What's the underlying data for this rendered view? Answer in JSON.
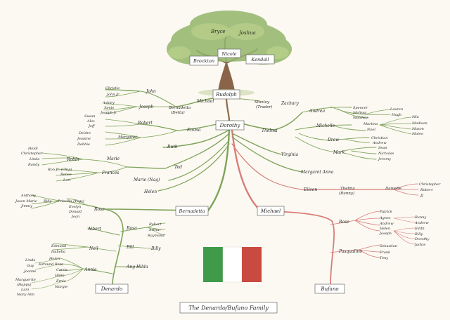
{
  "title": "The Denardo/Bufano Family",
  "colors": {
    "flag_green": "#3f9a4a",
    "flag_white": "#ffffff",
    "flag_red": "#c94a40",
    "branch": "#8aa85a",
    "red_branch": "#d97d7a"
  },
  "tree": {
    "top": [
      "Bryce",
      "Joshua",
      "Nicole",
      "Brockton",
      "Kendall"
    ],
    "root": "Rudolph"
  },
  "boxes": {
    "rudolph": "Rudolph",
    "dorothy": "Dorothy",
    "bernadetta": "Bernadetta",
    "michael": "Michael",
    "denardo": "Denardo",
    "bufano": "Bufano"
  },
  "nw": {
    "michael": "Michael",
    "bernadetta": "Bernadetta",
    "detta": "(Detta)",
    "stanley": "Stanley",
    "trader": "(Trader)",
    "zachary": "Zachary",
    "john": "John",
    "christie": "Christie",
    "john_jr": "John Jr",
    "joseph": "Joseph",
    "ashley": "Ashley",
    "jamie": "Jamie",
    "joseph_jr": "Joseph Jr",
    "robert": "Robert",
    "susan": "Susan",
    "alex": "Alex",
    "jeff": "Jeff",
    "emma": "Emma",
    "margaret": "Margaret",
    "deidre": "Deidre",
    "jeanine": "Jeanine",
    "debbie": "Debbie"
  },
  "west": {
    "ruth": "Ruth",
    "ted": "Ted",
    "marie": "Marie",
    "robin": "Robin",
    "heidi": "Heidi",
    "christopher": "Christopher",
    "linda": "Linda",
    "randy": "Randy",
    "frances": "Frances",
    "ron_jr": "Ron Jr. (Chip)",
    "renee": "Renee",
    "lori": "Lori",
    "marie_nag": "Marie (Nag)",
    "helen": "Helen"
  },
  "east": {
    "thelma": "Thelma",
    "andrea": "Andrea",
    "spencer": "Spencer",
    "melissa": "Melissa",
    "matthew": "Matthew",
    "lauren": "Lauren",
    "hugh": "Hugh",
    "michelle": "Michelle",
    "martina": "Martina",
    "noel": "Noel",
    "mia": "Mia",
    "madison": "Madison",
    "mason": "Mason",
    "mateo": "Mateo",
    "drew": "Drew",
    "christian": "Christian",
    "andrew": "Andrew",
    "mark": "Mark",
    "sean": "Sean",
    "nicholas": "Nicholas",
    "jeremy": "Jeremy",
    "virginia": "Virginia",
    "margaret_anna": "Margaret Anna",
    "eileen": "Eileen",
    "thelma_bunny": "Thelma",
    "bunny": "(Bunny)",
    "danielle": "Danielle",
    "christopher": "Christopher",
    "robert": "Robert",
    "jj": "JJ"
  },
  "sw": {
    "rose": "Rose",
    "billy": "Billy",
    "anthony": "Anthony",
    "jason_marie": "Jason Marie",
    "jimmy": "Jimmy",
    "priscilla": "Priscilla (Tags)",
    "evelyn": "Evelyn",
    "donald": "Donald",
    "jean": "Jean",
    "albert": "Albert",
    "rosa": "Rosa",
    "robert": "Robert",
    "arthur": "Arthur",
    "raymond": "Raymond",
    "edmund": "Edmund",
    "isabella": "Isabella",
    "nell": "Nell",
    "bill": "Bill",
    "billy2": "Billy",
    "helen": "Helen",
    "edmund_rose": "Edmund Rose",
    "linda": "Linda",
    "guy": "Guy",
    "joanne": "Joanne",
    "annie": "Annie",
    "carrie": "Carrie",
    "hilda": "Hilda",
    "ernie": "Ernie",
    "margie": "Margie",
    "marguerite": "Marguerite",
    "happy": "(Happy)",
    "lani": "Lani",
    "mary_ann": "Mary Ann",
    "ang_hilda": "Ang Hilda"
  },
  "se": {
    "rose": "Rose",
    "patrick": "Patrick",
    "agnes": "Agnes",
    "andrew": "Andrew",
    "helen": "Helen",
    "joseph": "Joseph",
    "bunny": "Bunny",
    "andrew2": "Andrew",
    "edith": "Edith",
    "billy": "Billy",
    "dorothy": "Dorothy",
    "jackie": "Jackie",
    "pasqualino": "Pasqualino",
    "sebastian": "Sebastian",
    "frank": "Frank",
    "tony": "Tony"
  }
}
